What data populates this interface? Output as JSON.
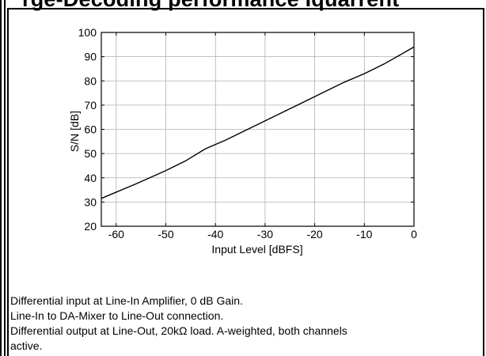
{
  "page": {
    "header_text": "rge-Decoding performance Iquarrent"
  },
  "chart_data": {
    "type": "line",
    "title": "",
    "xlabel": "Input Level [dBFS]",
    "ylabel": "S/N [dB]",
    "xlim": [
      -63,
      0
    ],
    "ylim": [
      20,
      100
    ],
    "x_ticks": [
      -60,
      -50,
      -40,
      -30,
      -20,
      -10,
      0
    ],
    "y_ticks": [
      20,
      30,
      40,
      50,
      60,
      70,
      80,
      90,
      100
    ],
    "x_tick_labels": [
      "-60",
      "-50",
      "-40",
      "-30",
      "-20",
      "-10",
      "0"
    ],
    "y_tick_labels": [
      "20",
      "30",
      "40",
      "50",
      "60",
      "70",
      "80",
      "90",
      "100"
    ],
    "grid": true,
    "series": [
      {
        "color": "#000000",
        "x": [
          -63,
          -56,
          -50,
          -46,
          -42,
          -38,
          -34,
          -30,
          -26,
          -22,
          -18,
          -14,
          -10,
          -6,
          -3,
          0
        ],
        "y": [
          31.5,
          37.5,
          43,
          47,
          52,
          55.5,
          59.5,
          63.5,
          67.5,
          71.5,
          75.5,
          79.5,
          83,
          87,
          90.5,
          94
        ]
      }
    ]
  },
  "caption": {
    "lines": [
      "Differential input at Line-In Amplifier, 0 dB Gain.",
      "Line-In to DA-Mixer to  Line-Out connection.",
      "Differential output at Line-Out, 20kΩ load. A-weighted, both channels",
      "active."
    ]
  }
}
